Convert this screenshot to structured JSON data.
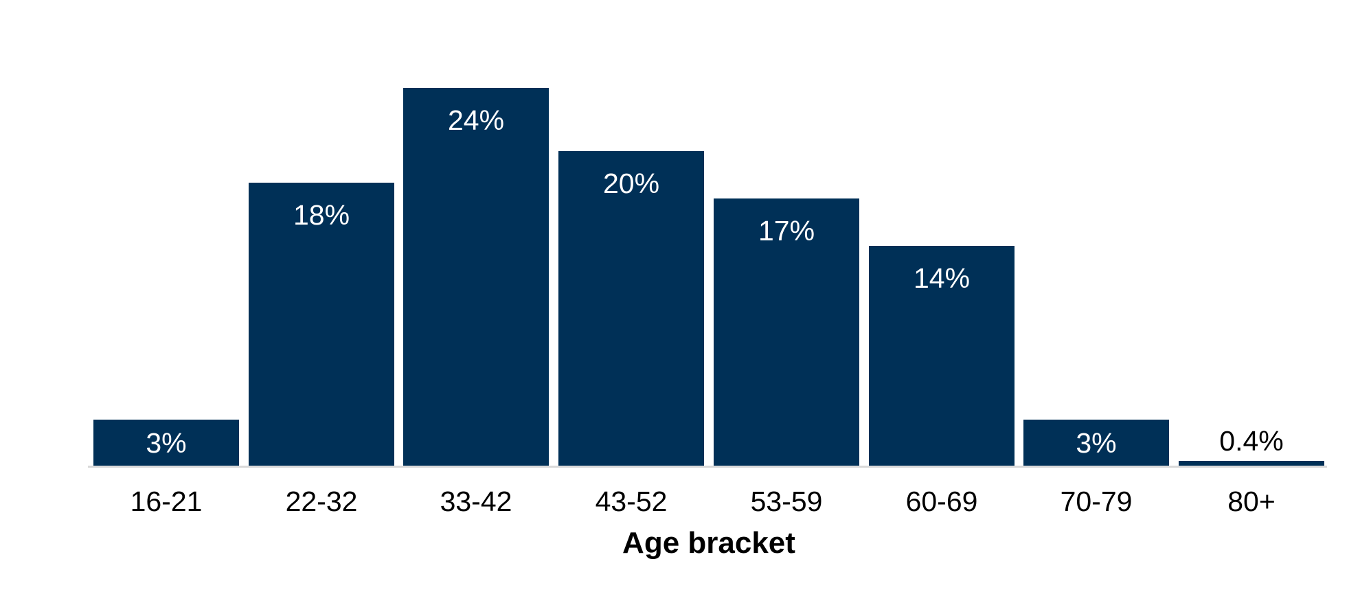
{
  "chart_data": {
    "type": "bar",
    "categories": [
      "16-21",
      "22-32",
      "33-42",
      "43-52",
      "53-59",
      "60-69",
      "70-79",
      "80+"
    ],
    "values": [
      3,
      18,
      24,
      20,
      17,
      14,
      3,
      0.4
    ],
    "data_labels": [
      "3%",
      "18%",
      "24%",
      "20%",
      "17%",
      "14%",
      "3%",
      "0.4%"
    ],
    "title": "",
    "xlabel": "Age bracket",
    "ylabel": "",
    "ylim": [
      0,
      26
    ],
    "grid": false,
    "legend": false,
    "colors": {
      "bar": "#003057",
      "label_inside": "#ffffff",
      "label_outside": "#000000",
      "axis_line": "#d9d9d9",
      "background": "#ffffff",
      "tick_text": "#000000"
    }
  }
}
